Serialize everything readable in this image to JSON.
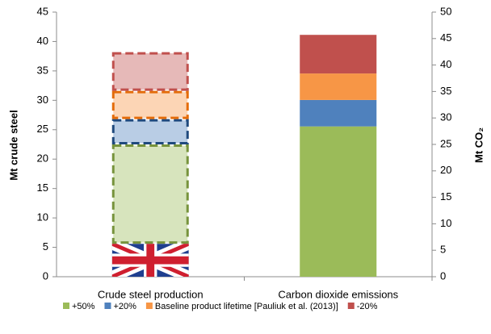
{
  "chart_data": {
    "type": "stacked_bar",
    "categories": [
      "Crude steel production",
      "Carbon dioxide emissions"
    ],
    "category_axes": [
      "y",
      "y2"
    ],
    "category_styles": [
      "dashed",
      "solid"
    ],
    "ylabel": "Mt crude steel",
    "y2label": "Mt CO₂",
    "ylim": [
      0,
      45
    ],
    "yticks": [
      0,
      5,
      10,
      15,
      20,
      25,
      30,
      35,
      40,
      45
    ],
    "y2lim": [
      0,
      50
    ],
    "y2ticks": [
      0,
      5,
      10,
      15,
      20,
      25,
      30,
      35,
      40,
      45,
      50
    ],
    "grid": false,
    "legend": "bottom",
    "series": [
      {
        "pattern": "union-flag",
        "values": [
          5.6,
          null
        ]
      },
      {
        "name": "+50%",
        "color": "#9bbb59",
        "edge": "#77933c",
        "values": [
          16.9,
          28.4
        ]
      },
      {
        "name": "+20%",
        "color": "#4f81bd",
        "edge": "#1f497d",
        "values": [
          4.3,
          5.0
        ]
      },
      {
        "name": "Baseline product lifetime [Pauliuk et al. (2013)]",
        "color": "#f79646",
        "edge": "#e46c0a",
        "values": [
          4.8,
          5.0
        ]
      },
      {
        "name": "-20%",
        "color": "#c0504d",
        "edge": "#c0504d",
        "values": [
          6.6,
          7.3
        ]
      }
    ]
  }
}
